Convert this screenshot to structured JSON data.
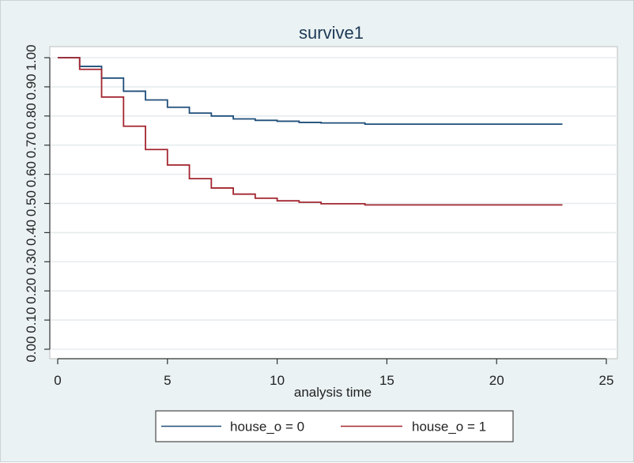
{
  "chart_data": {
    "type": "line",
    "title": "survive1",
    "xlabel": "analysis time",
    "ylabel": "",
    "xlim": [
      0,
      25
    ],
    "ylim": [
      0,
      1
    ],
    "x_ticks": [
      0,
      5,
      10,
      15,
      20,
      25
    ],
    "y_ticks": [
      0.0,
      0.1,
      0.2,
      0.3,
      0.4,
      0.5,
      0.6,
      0.7,
      0.8,
      0.9,
      1.0
    ],
    "x_tick_labels": [
      "0",
      "5",
      "10",
      "15",
      "20",
      "25"
    ],
    "y_tick_labels": [
      "0.00",
      "0.10",
      "0.20",
      "0.30",
      "0.40",
      "0.50",
      "0.60",
      "0.70",
      "0.80",
      "0.90",
      "1.00"
    ],
    "grid": true,
    "legend_position": "bottom",
    "step": true,
    "series": [
      {
        "name": "house_o = 0",
        "color": "#1f4e79",
        "x": [
          0,
          1,
          2,
          3,
          4,
          5,
          6,
          7,
          8,
          9,
          10,
          11,
          12,
          14,
          23
        ],
        "y": [
          1.0,
          0.97,
          0.93,
          0.885,
          0.855,
          0.83,
          0.81,
          0.8,
          0.79,
          0.785,
          0.782,
          0.778,
          0.776,
          0.772,
          0.772
        ]
      },
      {
        "name": "house_o = 1",
        "color": "#a32630",
        "x": [
          0,
          1,
          2,
          3,
          4,
          5,
          6,
          7,
          8,
          9,
          10,
          11,
          12,
          14,
          23
        ],
        "y": [
          1.0,
          0.96,
          0.865,
          0.765,
          0.685,
          0.632,
          0.585,
          0.553,
          0.532,
          0.518,
          0.509,
          0.504,
          0.499,
          0.495,
          0.495
        ]
      }
    ]
  }
}
